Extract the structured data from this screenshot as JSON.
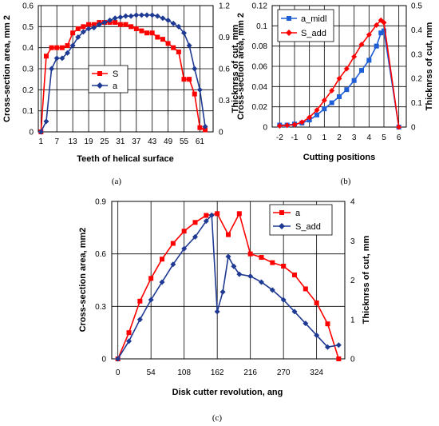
{
  "captions": [
    "(a)",
    "(b)",
    "(c)"
  ],
  "chart_data": [
    {
      "type": "line",
      "panel": "a",
      "xlabel": "Teeth of helical surface",
      "ylabel": "Cross-section area, mm 2",
      "y2label": "Thicknrss of cut, mm",
      "xticks": [
        "1",
        "7",
        "13",
        "19",
        "25",
        "31",
        "37",
        "43",
        "49",
        "55",
        "61"
      ],
      "yticks": [
        "0",
        "0.1",
        "0.2",
        "0.3",
        "0.4",
        "0.5",
        "0.6"
      ],
      "y2ticks": [
        "0",
        "0.3",
        "0.6",
        "0.9",
        "1.2"
      ],
      "xlim": [
        0,
        66
      ],
      "ylim": [
        0,
        0.6
      ],
      "y2lim": [
        0,
        1.2
      ],
      "grid": true,
      "legend_position": "center",
      "series": [
        {
          "name": "S",
          "axis": "left",
          "color": "#ff0000",
          "marker": "square",
          "x": [
            1,
            3,
            5,
            7,
            9,
            11,
            13,
            15,
            17,
            19,
            21,
            23,
            25,
            27,
            29,
            31,
            33,
            35,
            37,
            39,
            41,
            43,
            45,
            47,
            49,
            51,
            53,
            55,
            57,
            59,
            61,
            63
          ],
          "values": [
            0,
            0.36,
            0.4,
            0.4,
            0.4,
            0.41,
            0.47,
            0.49,
            0.5,
            0.51,
            0.51,
            0.52,
            0.52,
            0.52,
            0.52,
            0.51,
            0.51,
            0.5,
            0.49,
            0.48,
            0.47,
            0.47,
            0.45,
            0.44,
            0.42,
            0.4,
            0.38,
            0.25,
            0.25,
            0.18,
            0.02,
            0.01
          ]
        },
        {
          "name": "a",
          "axis": "right",
          "color": "#1f3a93",
          "marker": "diamond",
          "x": [
            1,
            3,
            5,
            7,
            9,
            11,
            13,
            15,
            17,
            19,
            21,
            23,
            25,
            27,
            29,
            31,
            33,
            35,
            37,
            39,
            41,
            43,
            45,
            47,
            49,
            51,
            53,
            55,
            57,
            59,
            61,
            63
          ],
          "values": [
            0,
            0.1,
            0.6,
            0.7,
            0.7,
            0.75,
            0.82,
            0.9,
            0.95,
            0.98,
            0.99,
            1.02,
            1.04,
            1.06,
            1.08,
            1.09,
            1.1,
            1.1,
            1.11,
            1.11,
            1.11,
            1.11,
            1.1,
            1.08,
            1.06,
            1.03,
            1.0,
            0.94,
            0.82,
            0.6,
            0.4,
            0.05
          ]
        }
      ]
    },
    {
      "type": "line",
      "panel": "b",
      "xlabel": "Cutting positions",
      "ylabel": "Cross-section area, mm 2",
      "y2label": "Thicknrss of cut, mm",
      "xticks": [
        "-2",
        "-1",
        "0",
        "1",
        "2",
        "3",
        "4",
        "5",
        "6"
      ],
      "yticks": [
        "0",
        "0.02",
        "0.04",
        "0.06",
        "0.08",
        "0.1",
        "0.12"
      ],
      "y2ticks": [
        "0",
        "0.1",
        "0.2",
        "0.3",
        "0.4",
        "0.5"
      ],
      "xlim": [
        -2.5,
        6.5
      ],
      "ylim": [
        0,
        0.12
      ],
      "y2lim": [
        0,
        0.5
      ],
      "grid": true,
      "legend_position": "top-left",
      "series": [
        {
          "name": "a_midl",
          "axis": "left",
          "color": "#1f5fd6",
          "marker": "square",
          "x": [
            -2,
            -1.5,
            -1,
            -0.5,
            0,
            0.5,
            1,
            1.5,
            2,
            2.5,
            3,
            3.5,
            4,
            4.5,
            4.8,
            5,
            6
          ],
          "values": [
            0.002,
            0.002,
            0.003,
            0.004,
            0.007,
            0.012,
            0.018,
            0.024,
            0.03,
            0.037,
            0.046,
            0.056,
            0.066,
            0.08,
            0.093,
            0.095,
            0
          ]
        },
        {
          "name": "S_add",
          "axis": "right",
          "color": "#ff0000",
          "marker": "diamond",
          "x": [
            -2,
            -1.5,
            -1,
            -0.5,
            0,
            0.5,
            1,
            1.5,
            2,
            2.5,
            3,
            3.5,
            4,
            4.5,
            4.8,
            5,
            6
          ],
          "values": [
            0.005,
            0.007,
            0.01,
            0.02,
            0.04,
            0.07,
            0.11,
            0.15,
            0.2,
            0.24,
            0.29,
            0.34,
            0.38,
            0.42,
            0.44,
            0.43,
            0
          ]
        }
      ]
    },
    {
      "type": "line",
      "panel": "c",
      "xlabel": "Disk cutter revolution, ang",
      "ylabel": "Cross-section area, mm2",
      "y2label": "Thicknrss of cut, mm",
      "xticks": [
        "0",
        "54",
        "108",
        "162",
        "216",
        "270",
        "324"
      ],
      "yticks": [
        "0",
        "0.3",
        "0.6",
        "0.9"
      ],
      "y2ticks": [
        "0",
        "1",
        "2",
        "3",
        "4"
      ],
      "xlim": [
        -10,
        370
      ],
      "ylim": [
        0,
        0.9
      ],
      "y2lim": [
        0,
        4
      ],
      "grid": true,
      "legend_position": "top-right",
      "series": [
        {
          "name": "a",
          "axis": "left",
          "color": "#ff0000",
          "marker": "square",
          "x": [
            0,
            18,
            36,
            54,
            72,
            90,
            108,
            126,
            144,
            162,
            180,
            198,
            216,
            234,
            252,
            270,
            288,
            306,
            324,
            342,
            360
          ],
          "values": [
            0,
            0.15,
            0.33,
            0.46,
            0.57,
            0.66,
            0.73,
            0.78,
            0.82,
            0.83,
            0.71,
            0.83,
            0.6,
            0.58,
            0.55,
            0.53,
            0.48,
            0.4,
            0.32,
            0.2,
            0
          ]
        },
        {
          "name": "S_add",
          "axis": "right",
          "color": "#1f3a93",
          "marker": "diamond",
          "x": [
            0,
            18,
            36,
            54,
            72,
            90,
            108,
            126,
            144,
            153,
            162,
            171,
            180,
            189,
            198,
            216,
            234,
            252,
            270,
            288,
            306,
            324,
            342,
            360
          ],
          "values": [
            0,
            0.45,
            1.0,
            1.5,
            1.95,
            2.4,
            2.8,
            3.1,
            3.5,
            3.65,
            1.2,
            1.7,
            2.6,
            2.35,
            2.15,
            2.1,
            1.95,
            1.75,
            1.5,
            1.2,
            0.9,
            0.6,
            0.3,
            0.35
          ]
        }
      ]
    }
  ]
}
